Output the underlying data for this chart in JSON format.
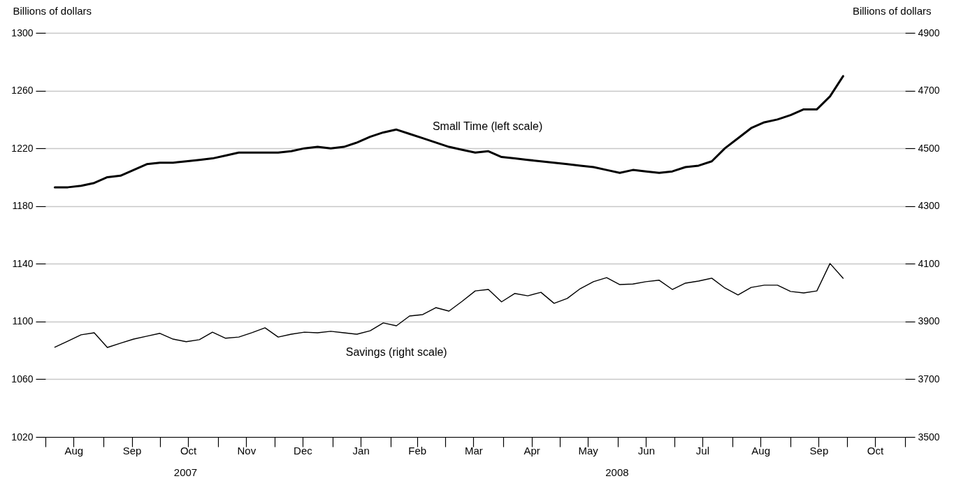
{
  "chart_data": {
    "type": "line",
    "ylabel": "Billions of dollars",
    "y2label": "Billions of dollars",
    "x": [
      "2007-08-06",
      "2007-08-13",
      "2007-08-20",
      "2007-08-27",
      "2007-09-03",
      "2007-09-10",
      "2007-09-17",
      "2007-09-24",
      "2007-10-01",
      "2007-10-08",
      "2007-10-15",
      "2007-10-22",
      "2007-10-29",
      "2007-11-05",
      "2007-11-12",
      "2007-11-19",
      "2007-11-26",
      "2007-12-03",
      "2007-12-10",
      "2007-12-17",
      "2007-12-24",
      "2007-12-31",
      "2008-01-07",
      "2008-01-14",
      "2008-01-21",
      "2008-01-28",
      "2008-02-04",
      "2008-02-11",
      "2008-02-18",
      "2008-02-25",
      "2008-03-03",
      "2008-03-10",
      "2008-03-17",
      "2008-03-24",
      "2008-03-31",
      "2008-04-07",
      "2008-04-14",
      "2008-04-21",
      "2008-04-28",
      "2008-05-05",
      "2008-05-12",
      "2008-05-19",
      "2008-05-26",
      "2008-06-02",
      "2008-06-09",
      "2008-06-16",
      "2008-06-23",
      "2008-06-30",
      "2008-07-07",
      "2008-07-14",
      "2008-07-21",
      "2008-07-28",
      "2008-08-04",
      "2008-08-11",
      "2008-08-18",
      "2008-08-25",
      "2008-09-01",
      "2008-09-08",
      "2008-09-15",
      "2008-09-22",
      "2008-09-29"
    ],
    "series": [
      {
        "name": "Small Time (left scale)",
        "color": "#000000",
        "values": [
          1193,
          1193,
          1194,
          1196,
          1200,
          1201,
          1205,
          1209,
          1210,
          1210,
          1211,
          1212,
          1213,
          1215,
          1217,
          1217,
          1217,
          1217,
          1218,
          1220,
          1221,
          1220,
          1221,
          1224,
          1228,
          1231,
          1233,
          1230,
          1227,
          1224,
          1221,
          1219,
          1217,
          1218,
          1214,
          1213,
          1212,
          1211,
          1210,
          1209,
          1208,
          1207,
          1205,
          1203,
          1205,
          1204,
          1203,
          1204,
          1207,
          1208,
          1211,
          1220,
          1227,
          1234,
          1238,
          1240,
          1243,
          1247,
          1247,
          1256,
          1270
        ]
      },
      {
        "name": "Savings (right scale)",
        "color": "#000000",
        "axis": "y2",
        "values": [
          3811,
          3832,
          3854,
          3861,
          3810,
          3825,
          3839,
          3849,
          3859,
          3839,
          3830,
          3837,
          3863,
          3842,
          3846,
          3861,
          3878,
          3846,
          3856,
          3863,
          3861,
          3866,
          3861,
          3856,
          3868,
          3895,
          3885,
          3919,
          3924,
          3948,
          3936,
          3970,
          4006,
          4011,
          3968,
          3997,
          3989,
          4001,
          3963,
          3980,
          4014,
          4038,
          4052,
          4028,
          4030,
          4038,
          4043,
          4011,
          4033,
          4040,
          4050,
          4016,
          3992,
          4018,
          4026,
          4026,
          4004,
          3999,
          4006,
          4101,
          4050
        ]
      }
    ],
    "xlim": [
      "2007-08-01",
      "2008-11-01"
    ],
    "xticks": [
      {
        "value": "2007-08-01",
        "label": null
      },
      {
        "value": "2007-08-16",
        "label": "Aug"
      },
      {
        "value": "2007-09-01",
        "label": null
      },
      {
        "value": "2007-09-16",
        "label": "Sep"
      },
      {
        "value": "2007-10-01",
        "label": null
      },
      {
        "value": "2007-10-16",
        "label": "Oct"
      },
      {
        "value": "2007-11-01",
        "label": null
      },
      {
        "value": "2007-11-16",
        "label": "Nov"
      },
      {
        "value": "2007-12-01",
        "label": null
      },
      {
        "value": "2007-12-16",
        "label": "Dec"
      },
      {
        "value": "2008-01-01",
        "label": null
      },
      {
        "value": "2008-01-16",
        "label": "Jan"
      },
      {
        "value": "2008-02-01",
        "label": null
      },
      {
        "value": "2008-02-15",
        "label": "Feb"
      },
      {
        "value": "2008-03-01",
        "label": null
      },
      {
        "value": "2008-03-16",
        "label": "Mar"
      },
      {
        "value": "2008-04-01",
        "label": null
      },
      {
        "value": "2008-04-16",
        "label": "Apr"
      },
      {
        "value": "2008-05-01",
        "label": null
      },
      {
        "value": "2008-05-16",
        "label": "May"
      },
      {
        "value": "2008-06-01",
        "label": null
      },
      {
        "value": "2008-06-16",
        "label": "Jun"
      },
      {
        "value": "2008-07-01",
        "label": null
      },
      {
        "value": "2008-07-16",
        "label": "Jul"
      },
      {
        "value": "2008-08-01",
        "label": null
      },
      {
        "value": "2008-08-16",
        "label": "Aug"
      },
      {
        "value": "2008-09-01",
        "label": null
      },
      {
        "value": "2008-09-16",
        "label": "Sep"
      },
      {
        "value": "2008-10-01",
        "label": null
      },
      {
        "value": "2008-10-16",
        "label": "Oct"
      },
      {
        "value": "2008-11-01",
        "label": null
      }
    ],
    "ylim": [
      1020,
      1300
    ],
    "yticks": [
      1020,
      1060,
      1100,
      1140,
      1180,
      1220,
      1260,
      1300
    ],
    "y2lim": [
      3500,
      4900
    ],
    "y2ticks": [
      3500,
      3700,
      3900,
      4100,
      4300,
      4500,
      4700,
      4900
    ],
    "grid": "y",
    "marker": "none",
    "line_style": "solid",
    "annotations": [
      "2007",
      "2008"
    ]
  }
}
